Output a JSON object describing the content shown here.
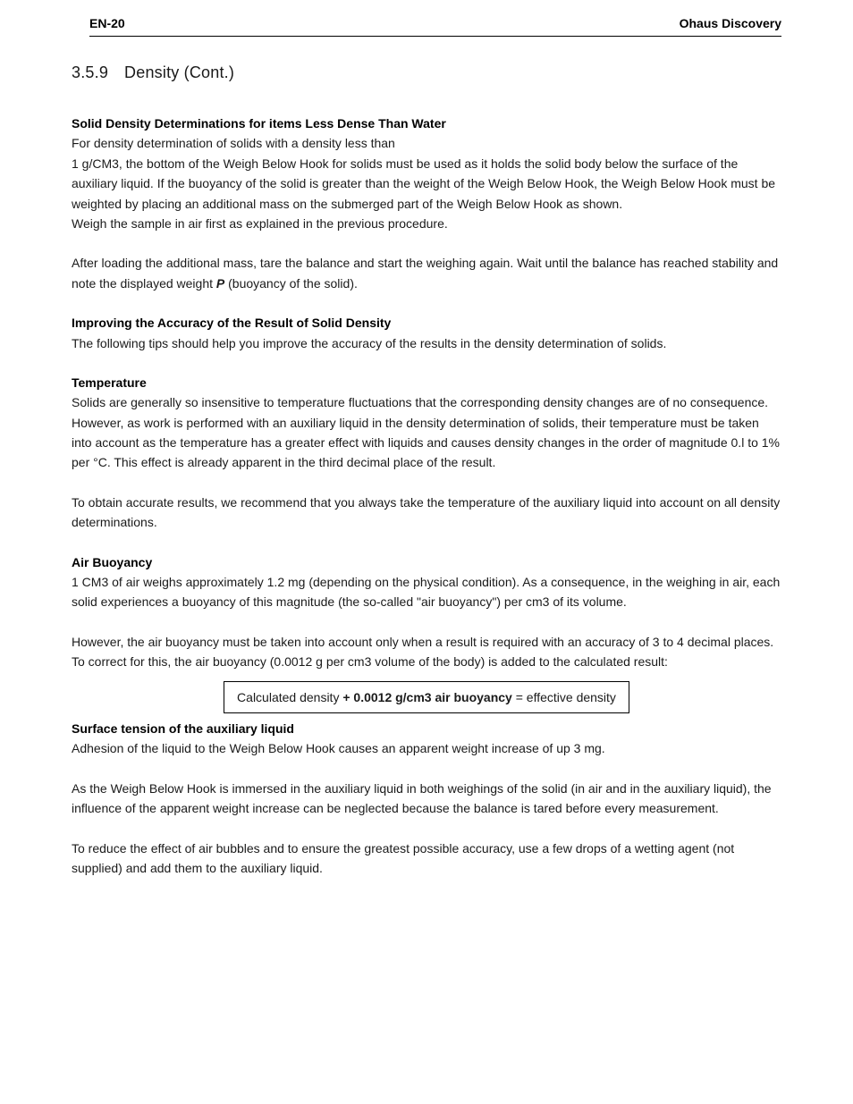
{
  "header": {
    "page_id": "EN-20",
    "doc_title": "Ohaus Discovery"
  },
  "section": {
    "number": "3.5.9",
    "title": "Density (Cont.)"
  },
  "solid_density": {
    "heading": "Solid Density Determinations for items Less Dense Than Water",
    "p1": "For density determination of solids with a density less than",
    "p2": "1 g/CM3, the bottom of the Weigh Below Hook for solids must be used as it holds the solid body below the surface of the auxiliary liquid. If the buoyancy of the solid is greater than the weight of the Weigh Below Hook, the Weigh Below Hook must be weighted by placing an additional mass on the submerged part of the Weigh Below Hook as shown.",
    "p3": "Weigh the sample in air first as explained in the previous procedure.",
    "p4_a": "After loading the additional mass, tare the balance and start the weighing again. Wait until the balance has reached stability and note the displayed weight ",
    "p4_var": "P",
    "p4_b": " (buoyancy of the solid)."
  },
  "improving": {
    "heading": "Improving the Accuracy of the Result of Solid Density",
    "p1": "The following tips should help you improve the accuracy of the results in the density determination of solids."
  },
  "temperature": {
    "heading": "Temperature",
    "p1": "Solids are generally so insensitive to temperature fluctuations that the corresponding density changes are of no consequence. However, as work is performed with an auxiliary liquid in the density determination of solids, their temperature must be taken into account as the temperature has a greater effect with liquids and causes density changes in the order of magnitude 0.l to 1% per °C. This effect is already apparent in the third decimal place of the result.",
    "p2": "To obtain accurate results, we recommend that you always take the temperature of the auxiliary liquid into account on all density determinations."
  },
  "air_buoyancy": {
    "heading": "Air Buoyancy",
    "p1": "1 CM3 of air weighs approximately 1.2 mg (depending on the physical condition). As a consequence, in the weighing in air, each solid experiences a buoyancy of this magnitude (the so-called \"air buoyancy\") per cm3 of its volume.",
    "p2": "However, the air buoyancy must be taken into account only when a result is required with an accuracy of 3 to 4 decimal places. To correct for this, the air buoyancy (0.0012 g per cm3 volume of the body) is added to the calculated result:",
    "formula_a": "Calculated density ",
    "formula_b": "+ 0.0012 g/cm3 air buoyancy",
    "formula_c": " = effective density"
  },
  "surface_tension": {
    "heading": "Surface tension of the auxiliary liquid",
    "p1": "Adhesion of the liquid to the Weigh Below Hook causes an apparent weight increase of up 3 mg.",
    "p2": "As the Weigh Below Hook is immersed in the auxiliary liquid in both weighings of the solid (in air and in the auxiliary liquid), the influence of the apparent weight increase can be neglected because the balance is tared before every measurement.",
    "p3": "To reduce the effect of air bubbles and to ensure the greatest possible accuracy, use a few drops of a wetting agent (not supplied) and add them to the auxiliary liquid."
  }
}
